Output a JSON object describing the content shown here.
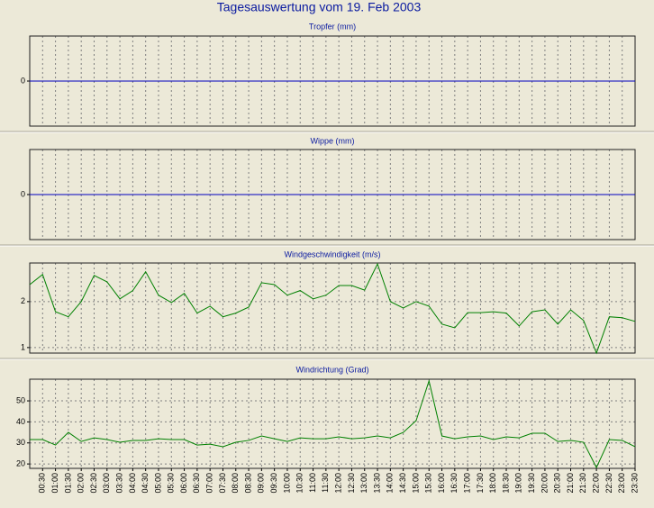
{
  "title": "Tagesauswertung vom 19. Feb 2003",
  "chart_data": [
    {
      "type": "line",
      "title": "Tropfer (mm)",
      "color": "#0000c0",
      "grid": true,
      "ylim": [
        -1,
        1
      ],
      "yticks": [
        0
      ],
      "values": [
        0,
        0,
        0,
        0,
        0,
        0,
        0,
        0,
        0,
        0,
        0,
        0,
        0,
        0,
        0,
        0,
        0,
        0,
        0,
        0,
        0,
        0,
        0,
        0,
        0,
        0,
        0,
        0,
        0,
        0,
        0,
        0,
        0,
        0,
        0,
        0,
        0,
        0,
        0,
        0,
        0,
        0,
        0,
        0,
        0,
        0,
        0,
        0
      ]
    },
    {
      "type": "line",
      "title": "Wippe (mm)",
      "color": "#0000c0",
      "grid": true,
      "ylim": [
        -1,
        1
      ],
      "yticks": [
        0
      ],
      "values": [
        0,
        0,
        0,
        0,
        0,
        0,
        0,
        0,
        0,
        0,
        0,
        0,
        0,
        0,
        0,
        0,
        0,
        0,
        0,
        0,
        0,
        0,
        0,
        0,
        0,
        0,
        0,
        0,
        0,
        0,
        0,
        0,
        0,
        0,
        0,
        0,
        0,
        0,
        0,
        0,
        0,
        0,
        0,
        0,
        0,
        0,
        0,
        0
      ]
    },
    {
      "type": "line",
      "title": "Windgeschwindigkeit (m/s)",
      "color": "#008000",
      "grid": true,
      "ylim": [
        0.88,
        2.84
      ],
      "yticks": [
        1,
        2
      ],
      "values": [
        2.37,
        2.59,
        1.78,
        1.67,
        2.0,
        2.57,
        2.43,
        2.06,
        2.24,
        2.65,
        2.14,
        1.98,
        2.18,
        1.75,
        1.9,
        1.67,
        1.75,
        1.88,
        2.41,
        2.37,
        2.14,
        2.24,
        2.06,
        2.14,
        2.35,
        2.35,
        2.25,
        2.82,
        2.0,
        1.86,
        2.0,
        1.9,
        1.51,
        1.43,
        1.76,
        1.76,
        1.78,
        1.75,
        1.47,
        1.78,
        1.82,
        1.51,
        1.82,
        1.59,
        0.88,
        1.67,
        1.65,
        1.57
      ]
    },
    {
      "type": "line",
      "title": "Windrichtung (Grad)",
      "color": "#008000",
      "grid": true,
      "ylim": [
        17.9,
        60.3
      ],
      "yticks": [
        20,
        30,
        40,
        50
      ],
      "categories": [
        null,
        "00:30",
        "01:00",
        "01:30",
        "02:00",
        "02:30",
        "03:00",
        "03:30",
        "04:00",
        "04:30",
        "05:00",
        "05:30",
        "06:00",
        "06:30",
        "07:00",
        "07:30",
        "08:00",
        "08:30",
        "09:00",
        "09:30",
        "10:00",
        "10:30",
        "11:00",
        "11:30",
        "12:00",
        "12:30",
        "13:00",
        "13:30",
        "14:00",
        "14:30",
        "15:00",
        "15:30",
        "16:00",
        "16:30",
        "17:00",
        "17:30",
        "18:00",
        "18:30",
        "19:00",
        "19:30",
        "20:00",
        "20:30",
        "21:00",
        "21:30",
        "22:00",
        "22:30",
        "23:00",
        "23:30"
      ],
      "values": [
        31.6,
        31.6,
        29,
        35,
        30.7,
        32.4,
        31.6,
        30.3,
        31.2,
        31.2,
        32,
        31.6,
        31.6,
        29,
        29.4,
        28.2,
        30.3,
        31.2,
        33.3,
        32,
        30.7,
        32.4,
        32,
        32,
        32.9,
        32,
        32.4,
        33.3,
        32.4,
        35,
        40.6,
        59.5,
        33.3,
        32,
        32.9,
        33.3,
        31.6,
        32.9,
        32.4,
        34.6,
        34.6,
        30.7,
        31.2,
        30.3,
        18.3,
        31.6,
        31.2,
        28.2
      ]
    }
  ]
}
